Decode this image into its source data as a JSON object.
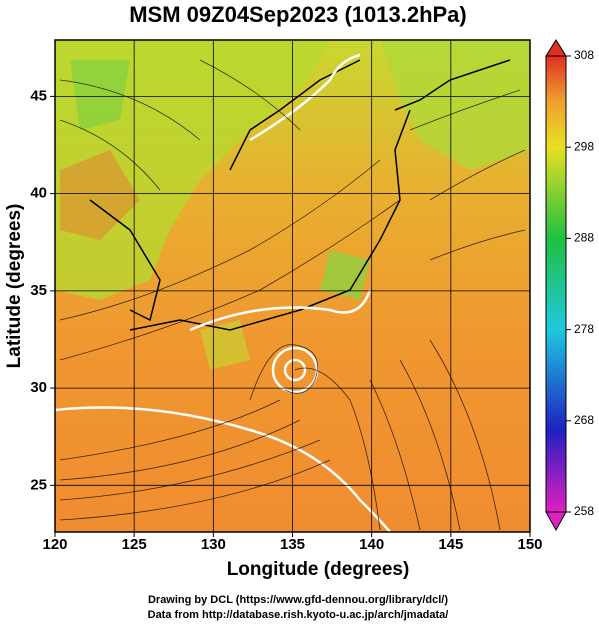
{
  "title": "MSM 09Z04Sep2023 (1013.2hPa)",
  "map": {
    "xlabel": "Longitude (degrees)",
    "ylabel": "Latitude  (degrees)",
    "xlim": [
      120,
      150
    ],
    "ylim": [
      22.6,
      47.9
    ],
    "xticks": [
      120,
      125,
      130,
      135,
      140,
      145,
      150
    ],
    "yticks": [
      25,
      30,
      35,
      40,
      45
    ],
    "grid": true
  },
  "colorbar": {
    "lim": [
      258,
      308
    ],
    "ticks": [
      258,
      268,
      278,
      288,
      298,
      308
    ]
  },
  "credits": [
    "Drawing by DCL (https://www.gfd-dennou.org/library/dcl/)",
    "Data from http://database.rish.kyoto-u.ac.jp/arch/jmadata/"
  ]
}
